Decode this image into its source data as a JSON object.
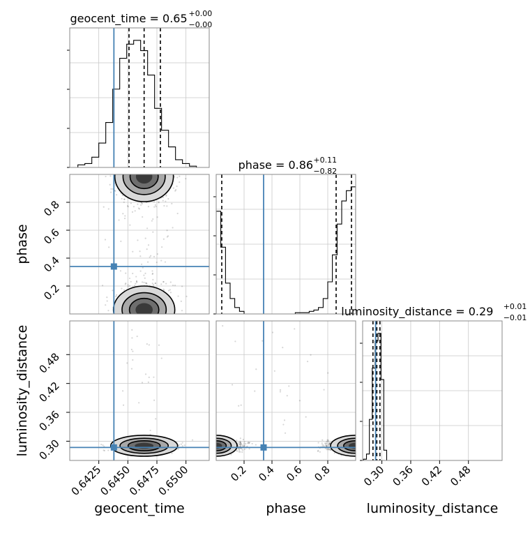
{
  "chart_data": {
    "type": "corner",
    "parameters": [
      "geocent_time",
      "phase",
      "luminosity_distance"
    ],
    "truth_color": "#4682b4",
    "truth": {
      "geocent_time": 0.6438,
      "phase": 0.34,
      "luminosity_distance": 0.287
    },
    "panels": {
      "geocent_time": {
        "title": "geocent_time = 0.65",
        "title_main": "geocent_time = 0.65",
        "title_plus": "+0.00",
        "title_minus": "−0.00",
        "xlim": [
          0.64,
          0.652
        ],
        "ticks": [
          "0.6425",
          "0.6450",
          "0.6475",
          "0.6500"
        ],
        "tick_values": [
          0.6425,
          0.645,
          0.6475,
          0.65
        ],
        "axis_label": "geocent_time",
        "quantiles": [
          0.6451,
          0.6464,
          0.6478
        ],
        "hist_edges": [
          0.6407,
          0.6413,
          0.6419,
          0.6425,
          0.6431,
          0.6437,
          0.6443,
          0.6449,
          0.6455,
          0.6461,
          0.6467,
          0.6473,
          0.6479,
          0.6485,
          0.6491,
          0.6497,
          0.6503,
          0.6509
        ],
        "hist_counts": [
          0.02,
          0.03,
          0.08,
          0.19,
          0.35,
          0.61,
          0.85,
          0.96,
          0.99,
          0.91,
          0.72,
          0.46,
          0.29,
          0.16,
          0.06,
          0.03,
          0.01
        ]
      },
      "phase": {
        "title": "phase = 0.86",
        "title_main": "phase = 0.86",
        "title_plus": "+0.11",
        "title_minus": "−0.82",
        "xlim": [
          0.0,
          1.0
        ],
        "ticks": [
          "0.2",
          "0.4",
          "0.6",
          "0.8"
        ],
        "tick_values": [
          0.2,
          0.4,
          0.6,
          0.8
        ],
        "y_ticks": [
          "0.2",
          "0.4",
          "0.6",
          "0.8"
        ],
        "axis_label": "phase",
        "quantiles": [
          0.04,
          0.86,
          0.97
        ],
        "hist_edges": [
          0.0,
          0.033,
          0.067,
          0.1,
          0.133,
          0.167,
          0.2,
          0.233,
          0.267,
          0.3,
          0.333,
          0.367,
          0.4,
          0.433,
          0.467,
          0.5,
          0.533,
          0.567,
          0.6,
          0.633,
          0.667,
          0.7,
          0.733,
          0.767,
          0.8,
          0.833,
          0.867,
          0.9,
          0.933,
          0.967,
          1.0
        ],
        "hist_counts": [
          0.8,
          0.52,
          0.24,
          0.12,
          0.05,
          0.02,
          0.0,
          0.0,
          0.0,
          0.0,
          0.0,
          0.0,
          0.0,
          0.0,
          0.0,
          0.0,
          0.0,
          0.01,
          0.01,
          0.01,
          0.02,
          0.03,
          0.05,
          0.12,
          0.25,
          0.46,
          0.7,
          0.88,
          0.96,
          0.99
        ]
      },
      "luminosity_distance": {
        "title": "luminosity_distance = 0.29",
        "title_main": "luminosity_distance = 0.29",
        "title_plus": "+0.01",
        "title_minus": "−0.01",
        "xlim": [
          0.26,
          0.55
        ],
        "ticks": [
          "0.30",
          "0.36",
          "0.42",
          "0.48"
        ],
        "tick_values": [
          0.3,
          0.36,
          0.42,
          0.48
        ],
        "y_ticks": [
          "0.30",
          "0.36",
          "0.42",
          "0.48"
        ],
        "axis_label": "luminosity_distance",
        "quantiles": [
          0.2815,
          0.2895,
          0.296
        ],
        "hist_edges": [
          0.262,
          0.268,
          0.274,
          0.28,
          0.286,
          0.292,
          0.298,
          0.304,
          0.31
        ],
        "hist_counts": [
          0.01,
          0.05,
          0.32,
          0.72,
          0.93,
          0.99,
          0.63,
          0.08
        ]
      }
    },
    "grid": true
  }
}
